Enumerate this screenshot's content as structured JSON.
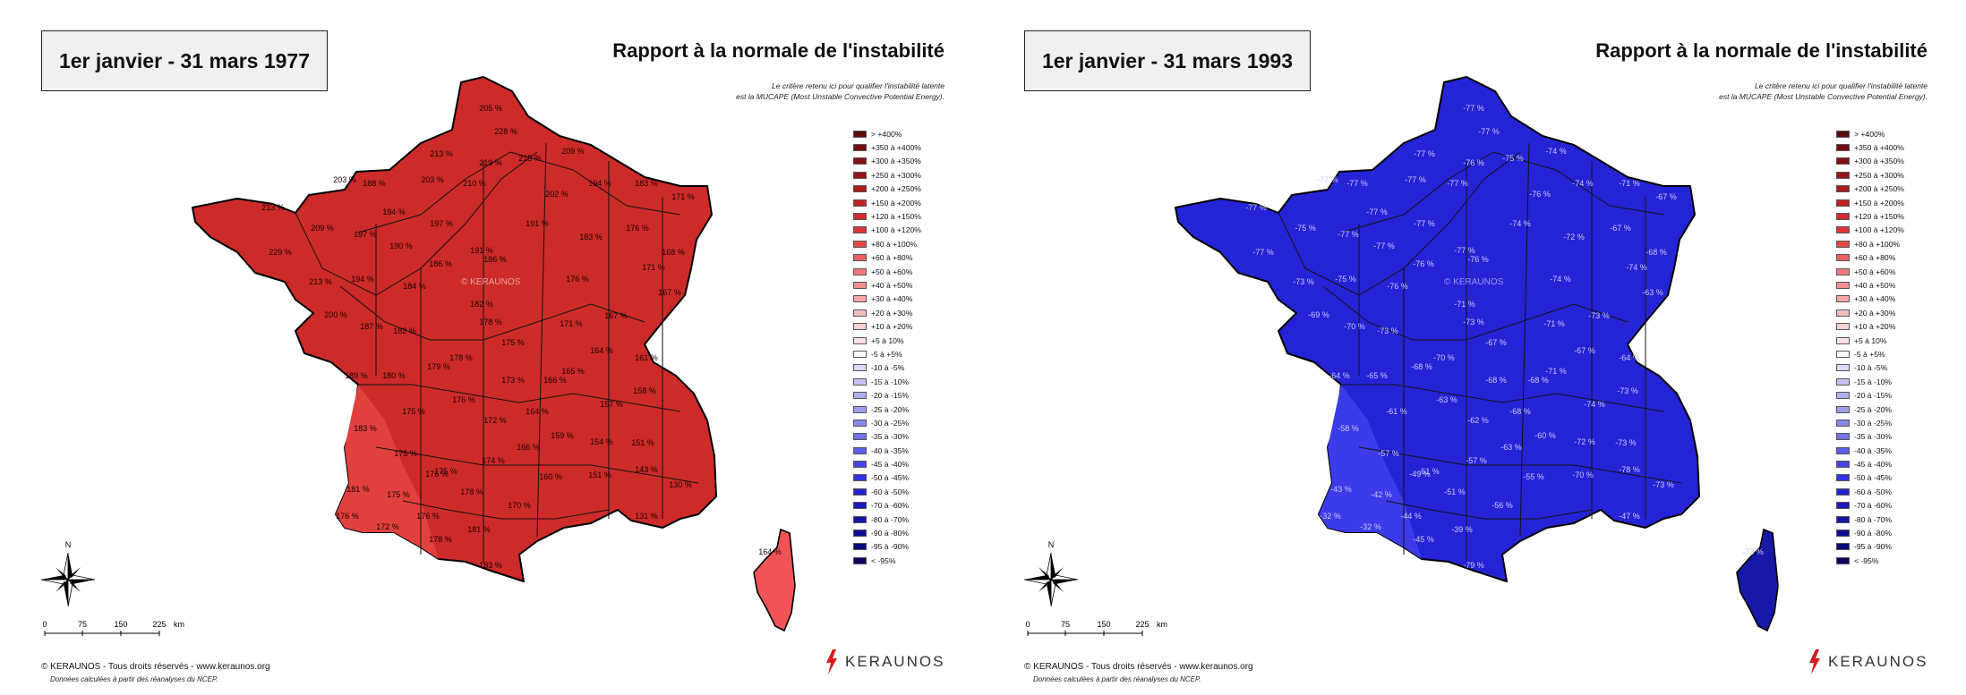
{
  "panels": [
    {
      "id": "left",
      "date_range": "1er janvier - 31 mars 1977",
      "title": "Rapport à la normale de l'instabilité",
      "note_line1": "Le critère retenu ici pour qualifier l'instabilité latente",
      "note_line2": "est la MUCAPE (Most Unstable Convective Potential Energy).",
      "watermark": "© KERAUNOS",
      "fill_color": "#cc2b29",
      "fill_color_light": "#e0413e",
      "corsica_color": "#f05456",
      "dept_labels": [
        "205 %",
        "228 %",
        "213 %",
        "219 %",
        "215 %",
        "209 %",
        "203 %",
        "188 %",
        "203 %",
        "210 %",
        "202 %",
        "194 %",
        "183 %",
        "171 %",
        "213 %",
        "209 %",
        "197 %",
        "194 %",
        "197 %",
        "190 %",
        "191 %",
        "191 %",
        "183 %",
        "176 %",
        "229 %",
        "213 %",
        "194 %",
        "184 %",
        "186 %",
        "186 %",
        "176 %",
        "171 %",
        "168 %",
        "167 %",
        "200 %",
        "187 %",
        "182 %",
        "182 %",
        "178 %",
        "171 %",
        "167 %",
        "175 %",
        "178 %",
        "179 %",
        "164 %",
        "161 %",
        "189 %",
        "180 %",
        "173 %",
        "166 %",
        "165 %",
        "158 %",
        "175 %",
        "176 %",
        "172 %",
        "164 %",
        "157 %",
        "183 %",
        "175 %",
        "166 %",
        "159 %",
        "154 %",
        "151 %",
        "175 %",
        "176 %",
        "174 %",
        "160 %",
        "151 %",
        "143 %",
        "181 %",
        "175 %",
        "178 %",
        "170 %",
        "130 %",
        "176 %",
        "172 %",
        "176 %",
        "181 %",
        "131 %",
        "178 %",
        "183 %",
        "164 %"
      ]
    },
    {
      "id": "right",
      "date_range": "1er janvier - 31 mars 1993",
      "title": "Rapport à la normale de l'instabilité",
      "note_line1": "Le critère retenu ici pour qualifier l'instabilité latente",
      "note_line2": "est la MUCAPE (Most Unstable Convective Potential Energy).",
      "watermark": "© KERAUNOS",
      "fill_color": "#2424d6",
      "fill_color_light": "#3b3bea",
      "corsica_color": "#1818a8",
      "dept_labels": [
        "-77 %",
        "-77 %",
        "-77 %",
        "-76 %",
        "-75 %",
        "-74 %",
        "-77 %",
        "-77 %",
        "-77 %",
        "-77 %",
        "-76 %",
        "-74 %",
        "-71 %",
        "-67 %",
        "-77 %",
        "-75 %",
        "-77 %",
        "-77 %",
        "-77 %",
        "-77 %",
        "-77 %",
        "-74 %",
        "-72 %",
        "-67 %",
        "-77 %",
        "-73 %",
        "-75 %",
        "-76 %",
        "-76 %",
        "-76 %",
        "-74 %",
        "-74 %",
        "-68 %",
        "-63 %",
        "-69 %",
        "-70 %",
        "-73 %",
        "-71 %",
        "-73 %",
        "-71 %",
        "-73 %",
        "-67 %",
        "-70 %",
        "-68 %",
        "-67 %",
        "-64 %",
        "-64 %",
        "-65 %",
        "-68 %",
        "-68 %",
        "-71 %",
        "-73 %",
        "-61 %",
        "-63 %",
        "-62 %",
        "-68 %",
        "-74 %",
        "-58 %",
        "-57 %",
        "-63 %",
        "-60 %",
        "-72 %",
        "-73 %",
        "-61 %",
        "-49 %",
        "-57 %",
        "-55 %",
        "-70 %",
        "-78 %",
        "-43 %",
        "-42 %",
        "-51 %",
        "-56 %",
        "-73 %",
        "-32 %",
        "-32 %",
        "-44 %",
        "-39 %",
        "-47 %",
        "-45 %",
        "-79 %",
        "-73 %"
      ]
    }
  ],
  "legend": {
    "items": [
      {
        "label": "> +400%",
        "color": "#5e0a0a"
      },
      {
        "label": "+350 à +400%",
        "color": "#720d0d"
      },
      {
        "label": "+300 à +350%",
        "color": "#851111"
      },
      {
        "label": "+250 à +300%",
        "color": "#991515"
      },
      {
        "label": "+200 à +250%",
        "color": "#ad1a1a"
      },
      {
        "label": "+150 à +200%",
        "color": "#c42222"
      },
      {
        "label": "+120 à +150%",
        "color": "#d42a2a"
      },
      {
        "label": "+100 à +120%",
        "color": "#e03434"
      },
      {
        "label": "+80 à +100%",
        "color": "#e84848"
      },
      {
        "label": "+60 à +80%",
        "color": "#ee6060"
      },
      {
        "label": "+50 à +60%",
        "color": "#f07a7a"
      },
      {
        "label": "+40 à +50%",
        "color": "#f29090"
      },
      {
        "label": "+30 à +40%",
        "color": "#f4a6a6"
      },
      {
        "label": "+20 à +30%",
        "color": "#f6bcbc"
      },
      {
        "label": "+10 à +20%",
        "color": "#f8d0d0"
      },
      {
        "label": "+5 à 10%",
        "color": "#fae2e2"
      },
      {
        "label": "-5 à +5%",
        "color": "#ffffff"
      },
      {
        "label": "-10 à -5%",
        "color": "#d8d8f8"
      },
      {
        "label": "-15 à -10%",
        "color": "#c4c4f4"
      },
      {
        "label": "-20 à -15%",
        "color": "#b0b0f0"
      },
      {
        "label": "-25 à -20%",
        "color": "#9c9cee"
      },
      {
        "label": "-30 à -25%",
        "color": "#8888ec"
      },
      {
        "label": "-35 à -30%",
        "color": "#7272ea"
      },
      {
        "label": "-40 à -35%",
        "color": "#5c5ce8"
      },
      {
        "label": "-45 à -40%",
        "color": "#4646e4"
      },
      {
        "label": "-50 à -45%",
        "color": "#3232de"
      },
      {
        "label": "-60 à -50%",
        "color": "#2424d2"
      },
      {
        "label": "-70 à -60%",
        "color": "#1a1ac0"
      },
      {
        "label": "-80 à -70%",
        "color": "#1414a8"
      },
      {
        "label": "-90 à -80%",
        "color": "#0e0e90"
      },
      {
        "label": "-95 à -90%",
        "color": "#0a0a78"
      },
      {
        "label": "< -95%",
        "color": "#06065e"
      }
    ]
  },
  "compass_label": "N",
  "scale": {
    "ticks": [
      "0",
      "75",
      "150",
      "225"
    ],
    "unit": "km"
  },
  "copyright": "© KERAUNOS - Tous droits réservés - www.keraunos.org",
  "source": "Données calculées à partir des réanalyses du NCEP.",
  "brand": "KERAUNOS"
}
